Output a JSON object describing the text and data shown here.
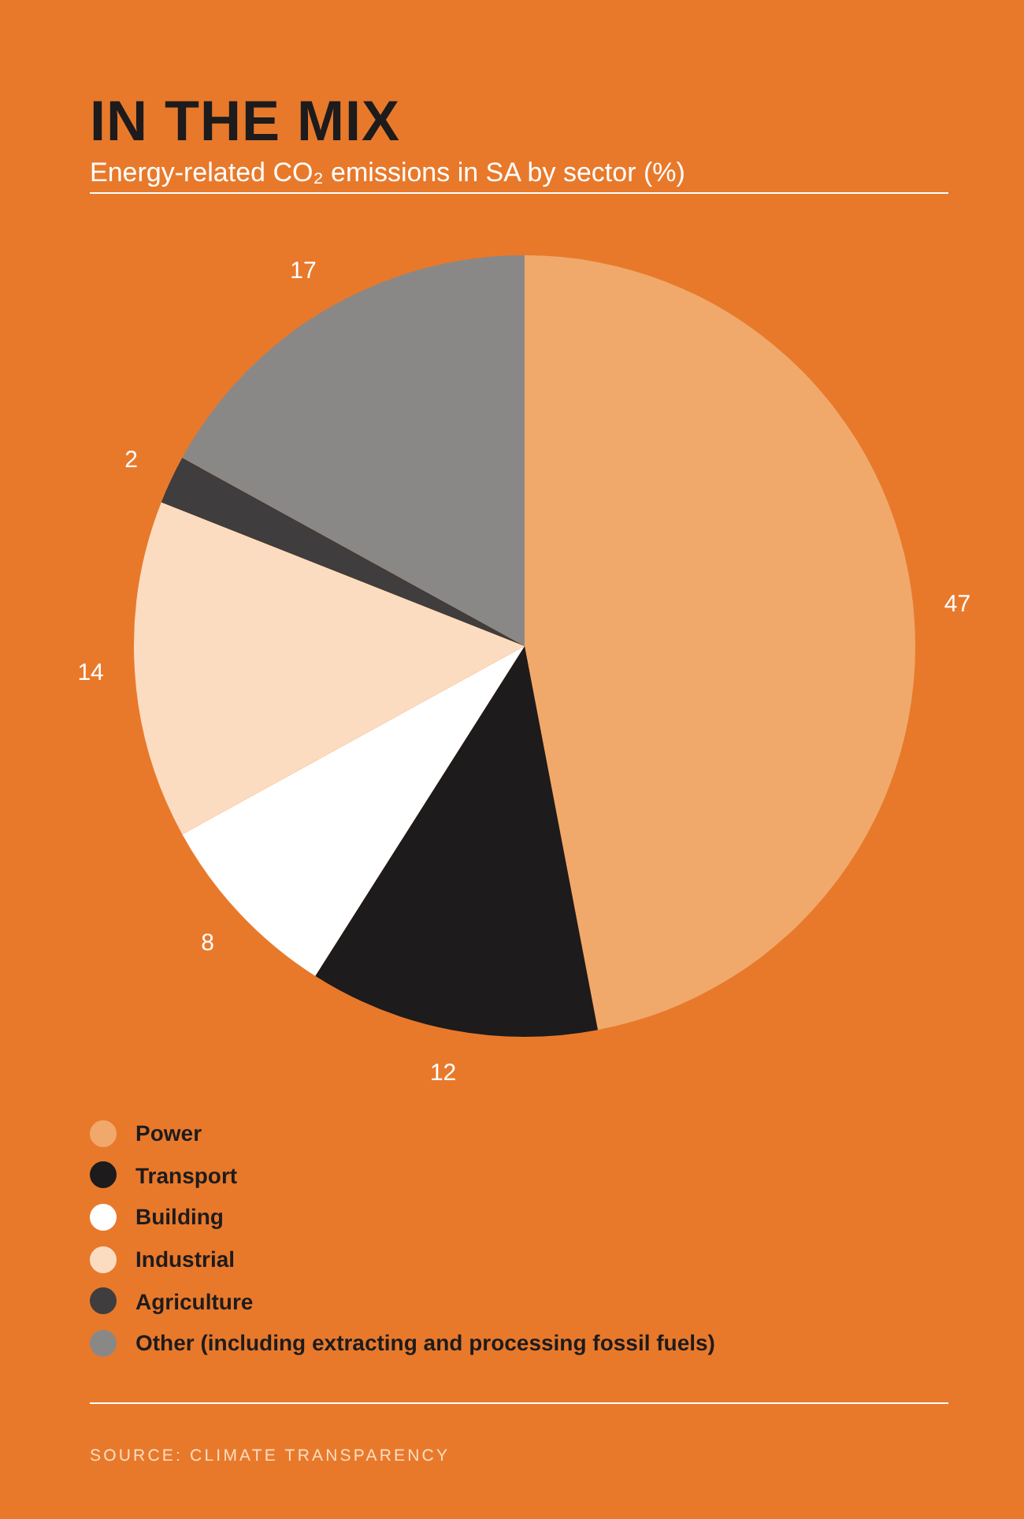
{
  "chart_data": {
    "type": "pie",
    "title": "IN THE MIX",
    "subtitle": "Energy-related CO₂ emissions in SA by sector (%)",
    "categories": [
      "Power",
      "Transport",
      "Building",
      "Industrial",
      "Agriculture",
      "Other (including extracting and processing fossil fuels)"
    ],
    "values": [
      47,
      12,
      8,
      14,
      2,
      17
    ],
    "colors": [
      "#f0a96b",
      "#1d1b1c",
      "#ffffff",
      "#fbdcc0",
      "#3f3d3d",
      "#8a8886"
    ],
    "data_labels": true,
    "legend": "bottom",
    "annotations": [
      "SOURCE: CLIMATE TRANSPARENCY"
    ]
  }
}
